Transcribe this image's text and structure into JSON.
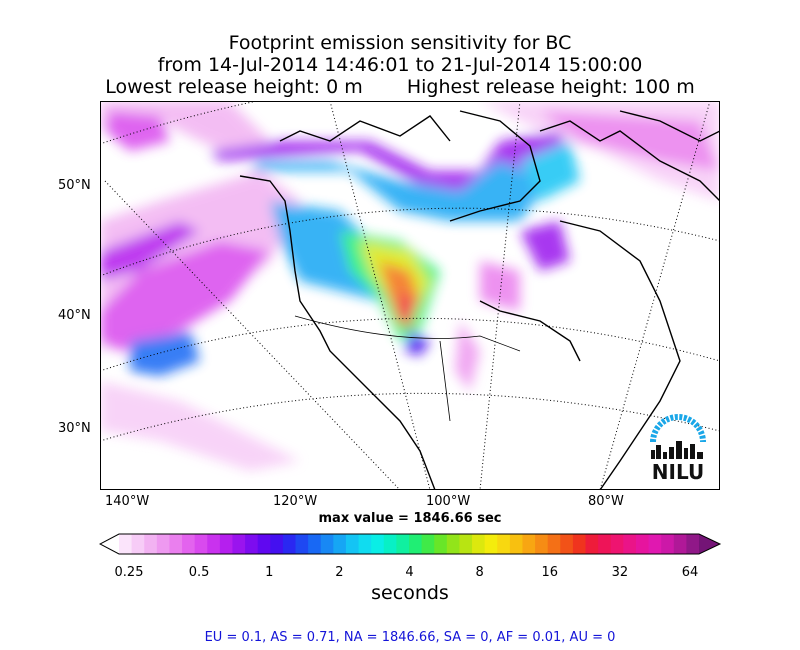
{
  "title": {
    "line1": "Footprint emission sensitivity for BC",
    "line2": "from 14-Jul-2014 14:46:01 to 21-Jul-2014 15:00:00",
    "line3a": "Lowest release height: 0 m",
    "line3b": "Highest release height: 100 m"
  },
  "map": {
    "lat_labels": [
      "50°N",
      "40°N",
      "30°N"
    ],
    "lon_labels": [
      "140°W",
      "120°W",
      "100°W",
      "80°W"
    ],
    "logo_text": "NILU",
    "logo_color": "#1aa7e8"
  },
  "max_value_text": "max value = 1846.66 sec",
  "colorbar": {
    "ticks": [
      "0.25",
      "0.5",
      "1",
      "2",
      "4",
      "8",
      "16",
      "32",
      "64"
    ],
    "label": "seconds",
    "colors": [
      "#ffffff",
      "#fbe4fb",
      "#f7ccf7",
      "#f2b2f2",
      "#ee99f0",
      "#ea7fee",
      "#e363ee",
      "#d94aee",
      "#c932ee",
      "#b51fee",
      "#9a14ee",
      "#7d0cef",
      "#6008f0",
      "#4410f0",
      "#2a28f2",
      "#1e48f2",
      "#1868f4",
      "#1888f4",
      "#16a6f4",
      "#14c4f4",
      "#10dcf0",
      "#0aeee6",
      "#08f0c6",
      "#10f0a0",
      "#20ee74",
      "#40ea48",
      "#68e628",
      "#92e41a",
      "#b8e412",
      "#dce80e",
      "#f4ec0c",
      "#f8d810",
      "#f8c010",
      "#f8a612",
      "#f68c14",
      "#f47016",
      "#f25218",
      "#f0341e",
      "#ee1c3a",
      "#ee1458",
      "#ee1470",
      "#ea1488",
      "#e6149e",
      "#e018b0",
      "#cc18a8",
      "#b01898",
      "#901888",
      "#741476"
    ]
  },
  "footer": "EU = 0.1,  AS = 0.71,  NA = 1846.66,  SA = 0,  AF = 0.01,  AU = 0"
}
